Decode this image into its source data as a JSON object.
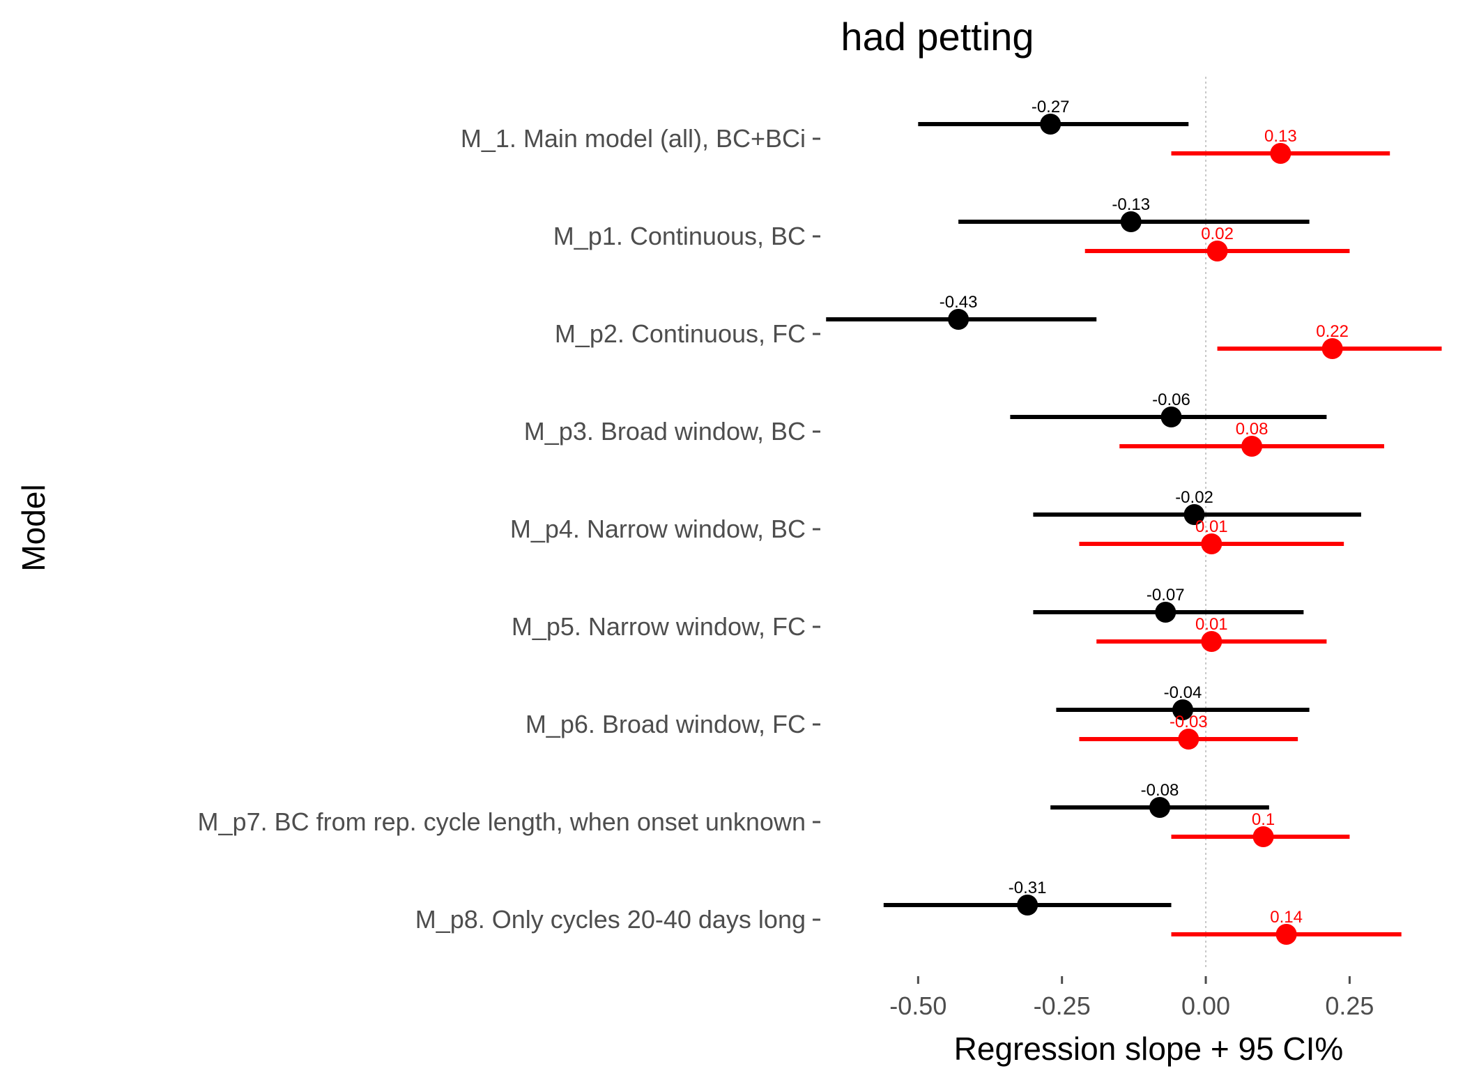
{
  "chart_data": {
    "type": "scatter",
    "title": "had petting",
    "xlabel": "Regression slope + 95 CI%",
    "ylabel": "Model",
    "xlim": [
      -0.67,
      0.43
    ],
    "xticks": [
      -0.5,
      -0.25,
      0.0,
      0.25
    ],
    "xtick_labels": [
      "-0.50",
      "-0.25",
      "0.00",
      "0.25"
    ],
    "reference_line": 0,
    "grid": false,
    "legend": "none",
    "categories": [
      "M_1. Main model (all), BC+BCi",
      "M_p1. Continuous, BC",
      "M_p2. Continuous, FC",
      "M_p3. Broad window, BC",
      "M_p4. Narrow window, BC",
      "M_p5. Narrow window, FC",
      "M_p6. Broad window, FC",
      "M_p7. BC from rep. cycle length, when onset unknown",
      "M_p8. Only cycles 20-40 days long"
    ],
    "series": [
      {
        "color": "#000000",
        "estimates": [
          -0.27,
          -0.13,
          -0.43,
          -0.06,
          -0.02,
          -0.07,
          -0.04,
          -0.08,
          -0.31
        ],
        "estimate_labels": [
          "-0.27",
          "-0.13",
          "-0.43",
          "-0.06",
          "-0.02",
          "-0.07",
          "-0.04",
          "-0.08",
          "-0.31"
        ],
        "ci_low": [
          -0.5,
          -0.43,
          -0.66,
          -0.34,
          -0.3,
          -0.3,
          -0.26,
          -0.27,
          -0.56
        ],
        "ci_high": [
          -0.03,
          0.18,
          -0.19,
          0.21,
          0.27,
          0.17,
          0.18,
          0.11,
          -0.06
        ]
      },
      {
        "color": "#ff0000",
        "estimates": [
          0.13,
          0.02,
          0.22,
          0.08,
          0.01,
          0.01,
          -0.03,
          0.1,
          0.14
        ],
        "estimate_labels": [
          "0.13",
          "0.02",
          "0.22",
          "0.08",
          "0.01",
          "0.01",
          "-0.03",
          "0.1",
          "0.14"
        ],
        "ci_low": [
          -0.06,
          -0.21,
          0.02,
          -0.15,
          -0.22,
          -0.19,
          -0.22,
          -0.06,
          -0.06
        ],
        "ci_high": [
          0.32,
          0.25,
          0.41,
          0.31,
          0.24,
          0.21,
          0.16,
          0.25,
          0.34
        ]
      }
    ]
  }
}
